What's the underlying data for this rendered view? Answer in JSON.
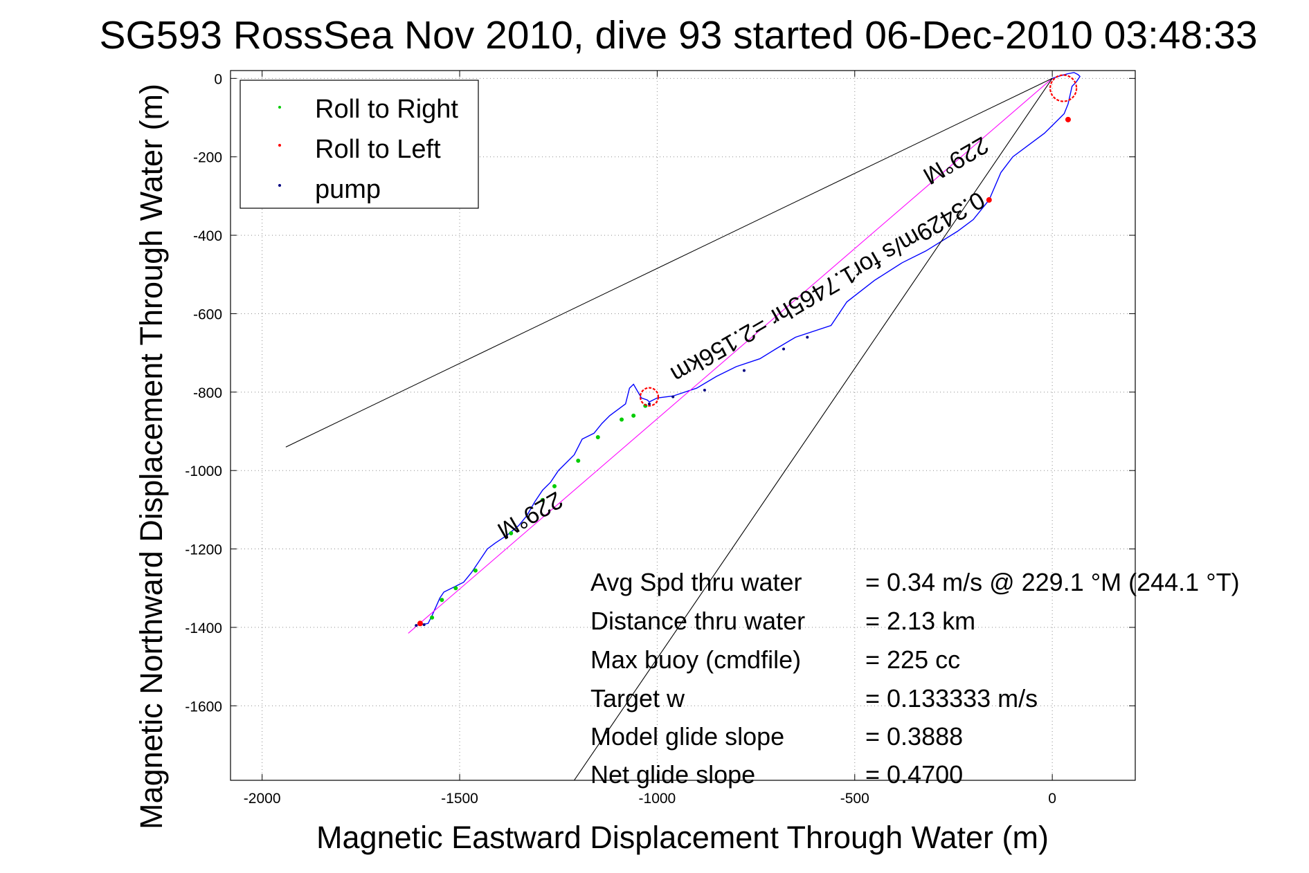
{
  "chart_data": {
    "type": "line",
    "title": "SG593 RossSea Nov 2010, dive 93 started 06-Dec-2010 03:48:33",
    "xlabel": "Magnetic Eastward Displacement Through Water (m)",
    "ylabel": "Magnetic Northward Displacement Through Water (m)",
    "xlim": [
      -2080,
      210
    ],
    "ylim": [
      -1790,
      20
    ],
    "xticks": [
      -2000,
      -1500,
      -1000,
      -500,
      0
    ],
    "yticks": [
      0,
      -200,
      -400,
      -600,
      -800,
      -1000,
      -1200,
      -1400,
      -1600
    ],
    "grid": true,
    "legend_position": "top-left",
    "legend": [
      {
        "label": "Roll to Right",
        "color": "#00cc00"
      },
      {
        "label": "Roll to Left",
        "color": "#ff0000"
      },
      {
        "label": "pump",
        "color": "#000080"
      }
    ],
    "series": [
      {
        "name": "track",
        "color": "#0000ff",
        "x": [
          -1610,
          -1580,
          -1570,
          -1550,
          -1540,
          -1510,
          -1490,
          -1470,
          -1450,
          -1430,
          -1410,
          -1380,
          -1350,
          -1330,
          -1310,
          -1290,
          -1270,
          -1250,
          -1230,
          -1210,
          -1190,
          -1160,
          -1140,
          -1120,
          -1100,
          -1080,
          -1070,
          -1060,
          -1040,
          -1025,
          -1020,
          -1000,
          -960,
          -900,
          -850,
          -800,
          -740,
          -700,
          -650,
          -560,
          -520,
          -450,
          -380,
          -320,
          -240,
          -200,
          -160,
          -130,
          -100,
          -60,
          -20,
          10,
          30,
          40,
          50,
          60,
          70,
          65,
          55,
          40,
          25,
          0
        ],
        "y": [
          -1395,
          -1390,
          -1370,
          -1325,
          -1310,
          -1295,
          -1285,
          -1260,
          -1230,
          -1200,
          -1185,
          -1165,
          -1140,
          -1115,
          -1080,
          -1050,
          -1030,
          -1000,
          -980,
          -960,
          -920,
          -905,
          -880,
          -860,
          -845,
          -830,
          -790,
          -780,
          -815,
          -820,
          -825,
          -815,
          -810,
          -790,
          -760,
          -735,
          -715,
          -690,
          -660,
          -630,
          -570,
          -515,
          -470,
          -440,
          -390,
          -360,
          -310,
          -240,
          -200,
          -170,
          -140,
          -110,
          -90,
          -65,
          -20,
          -10,
          5,
          10,
          15,
          12,
          8,
          0
        ]
      },
      {
        "name": "heading line",
        "color": "#ff00ff",
        "x": [
          -1630,
          0
        ],
        "y": [
          -1415,
          0
        ]
      },
      {
        "name": "cone upper",
        "color": "#000000",
        "x": [
          -1940,
          0
        ],
        "y": [
          -940,
          0
        ]
      },
      {
        "name": "cone lower",
        "color": "#000000",
        "x": [
          -1210,
          0
        ],
        "y": [
          -1790,
          0
        ]
      }
    ],
    "markers": {
      "roll_right_x": [
        -1570,
        -1545,
        -1510,
        -1460,
        -1370,
        -1290,
        -1260,
        -1200,
        -1150,
        -1090,
        -1060,
        -1030
      ],
      "roll_right_y": [
        -1375,
        -1330,
        -1300,
        -1255,
        -1160,
        -1075,
        -1040,
        -975,
        -915,
        -870,
        -860,
        -835
      ],
      "roll_left_centers": [
        [
          -1020,
          -812
        ],
        [
          28,
          -25
        ],
        [
          -160,
          -310
        ],
        [
          40,
          -105
        ],
        [
          -1600,
          -1390
        ]
      ],
      "pump_x": [
        -1610,
        -1590,
        -1020,
        -960,
        -880,
        -780,
        -680,
        -620
      ],
      "pump_y": [
        -1395,
        -1393,
        -830,
        -812,
        -795,
        -745,
        -690,
        -660
      ]
    },
    "annotations": [
      {
        "text": "229°M",
        "rotation_deg": 150
      },
      {
        "text": "0.3429m/s for1.7465hr =2.156km",
        "rotation_deg": 150
      },
      {
        "text": "229°M",
        "rotation_deg": 150
      }
    ],
    "stats": [
      {
        "label": "Avg Spd thru water",
        "value": "=  0.34 m/s @ 229.1 °M (244.1 °T)"
      },
      {
        "label": "Distance thru water",
        "value": "=  2.13 km"
      },
      {
        "label": "Max buoy (cmdfile)",
        "value": "= 225 cc"
      },
      {
        "label": "Target w",
        "value": "= 0.133333 m/s"
      },
      {
        "label": "Model glide slope",
        "value": "= 0.3888"
      },
      {
        "label": "Net glide slope",
        "value": "= 0.4700"
      }
    ]
  }
}
